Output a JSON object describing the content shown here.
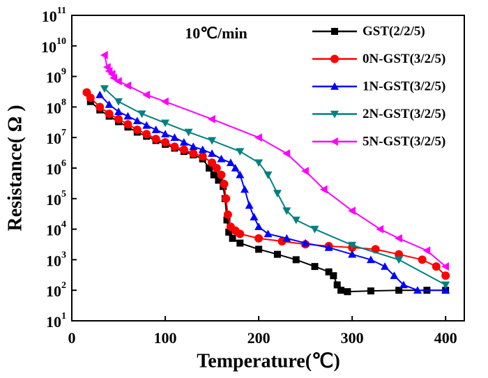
{
  "chart_data": {
    "type": "line",
    "annotation": "10℃/min",
    "x_label": "Temperature(℃)",
    "y_label": "Resistance( Ω )",
    "log_y": true,
    "legend": "upper right",
    "xlim": [
      0,
      420
    ],
    "xticks": [
      0,
      100,
      200,
      300,
      400
    ],
    "ylim": [
      10,
      100000000000
    ],
    "yticks": [
      {
        "value": 10,
        "label": "10",
        "sup": "1"
      },
      {
        "value": 100,
        "label": "10",
        "sup": "2"
      },
      {
        "value": 1000,
        "label": "10",
        "sup": "3"
      },
      {
        "value": 10000,
        "label": "10",
        "sup": "4"
      },
      {
        "value": 100000,
        "label": "10",
        "sup": "5"
      },
      {
        "value": 1000000,
        "label": "10",
        "sup": "6"
      },
      {
        "value": 10000000,
        "label": "10",
        "sup": "7"
      },
      {
        "value": 100000000,
        "label": "10",
        "sup": "8"
      },
      {
        "value": 1000000000,
        "label": "10",
        "sup": "9"
      },
      {
        "value": 10000000000,
        "label": "10",
        "sup": "10"
      },
      {
        "value": 100000000000,
        "label": "10",
        "sup": "11"
      }
    ],
    "series": [
      {
        "name": "GST(2/2/5)",
        "color": "#000000",
        "marker": "square",
        "x": [
          20,
          30,
          40,
          50,
          60,
          70,
          80,
          90,
          100,
          110,
          120,
          130,
          140,
          147,
          152,
          157,
          162,
          164,
          166,
          168,
          172,
          180,
          200,
          220,
          240,
          260,
          275,
          280,
          284,
          288,
          295,
          320,
          350,
          380,
          400
        ],
        "values": [
          150000000,
          80000000,
          50000000,
          33000000,
          22000000,
          15000000,
          11000000,
          8000000,
          6000000,
          4500000,
          3500000,
          2700000,
          2000000,
          1000000,
          600000,
          400000,
          250000,
          100000,
          20000,
          8000,
          5000,
          3500,
          2200,
          1500,
          1000,
          600,
          400,
          300,
          150,
          100,
          90,
          95,
          100,
          100,
          100
        ]
      },
      {
        "name": "0N-GST(3/2/5)",
        "color": "#ff0000",
        "marker": "circle",
        "x": [
          16,
          20,
          30,
          40,
          50,
          60,
          70,
          80,
          90,
          100,
          110,
          120,
          130,
          140,
          150,
          155,
          160,
          163,
          165,
          167,
          170,
          175,
          180,
          200,
          225,
          250,
          275,
          300,
          325,
          350,
          375,
          390,
          400
        ],
        "values": [
          300000000,
          200000000,
          100000000,
          60000000,
          40000000,
          27000000,
          18000000,
          13000000,
          9000000,
          7000000,
          5000000,
          4000000,
          3000000,
          2400000,
          1500000,
          1000000,
          600000,
          300000,
          100000,
          30000,
          12000,
          9000,
          7000,
          5000,
          4000,
          3200,
          2800,
          2500,
          2200,
          1500,
          1000,
          600,
          300
        ]
      },
      {
        "name": "1N-GST(3/2/5)",
        "color": "#0000ff",
        "marker": "triangle-up",
        "x": [
          30,
          40,
          50,
          60,
          70,
          80,
          90,
          100,
          110,
          120,
          130,
          140,
          150,
          160,
          170,
          175,
          180,
          185,
          190,
          195,
          200,
          210,
          230,
          250,
          275,
          300,
          320,
          335,
          345,
          355,
          370,
          400
        ],
        "values": [
          250000000,
          120000000,
          70000000,
          50000000,
          35000000,
          25000000,
          18000000,
          13000000,
          10000000,
          7000000,
          5000000,
          4000000,
          3000000,
          2000000,
          1500000,
          1000000,
          600000,
          200000,
          60000,
          25000,
          12000,
          7000,
          5000,
          3500,
          2500,
          1500,
          1000,
          600,
          300,
          150,
          100,
          100
        ]
      },
      {
        "name": "2N-GST(3/2/5)",
        "color": "#008080",
        "marker": "triangle-down",
        "x": [
          35,
          50,
          75,
          100,
          125,
          150,
          180,
          200,
          210,
          220,
          230,
          240,
          260,
          300,
          350,
          400
        ],
        "values": [
          400000000,
          150000000,
          60000000,
          30000000,
          15000000,
          8000000,
          3500000,
          1500000,
          600000,
          150000,
          40000,
          20000,
          10000,
          3000,
          1000,
          150
        ]
      },
      {
        "name": "5N-GST(3/2/5)",
        "color": "#ff00ff",
        "marker": "triangle-left",
        "x": [
          35,
          38,
          40,
          43,
          45,
          50,
          60,
          80,
          100,
          150,
          200,
          230,
          250,
          270,
          300,
          330,
          350,
          380,
          400
        ],
        "values": [
          5000000000,
          2000000000,
          1500000000,
          1200000000,
          900000000,
          700000000,
          500000000,
          250000000,
          150000000,
          40000000,
          10000000,
          3000000,
          800000,
          200000,
          40000,
          10000,
          5000,
          2000,
          600
        ]
      }
    ]
  }
}
